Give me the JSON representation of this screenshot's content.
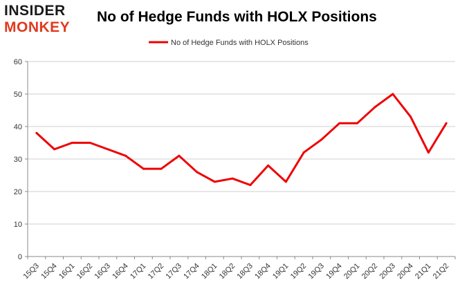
{
  "logo": {
    "line1": "INSIDER",
    "line2": "MONKEY",
    "colors": {
      "line1": "#1a1a1a",
      "line2": "#e03a1e"
    }
  },
  "chart_data": {
    "type": "line",
    "title": "No of Hedge Funds with HOLX Positions",
    "xlabel": "",
    "ylabel": "",
    "categories": [
      "15Q3",
      "15Q4",
      "16Q1",
      "16Q2",
      "16Q3",
      "16Q4",
      "17Q1",
      "17Q2",
      "17Q3",
      "17Q4",
      "18Q1",
      "18Q2",
      "18Q3",
      "18Q4",
      "19Q1",
      "19Q2",
      "19Q3",
      "19Q4",
      "20Q1",
      "20Q2",
      "20Q3",
      "20Q4",
      "21Q1",
      "21Q2"
    ],
    "series": [
      {
        "name": "No of Hedge Funds with HOLX Positions",
        "values": [
          38,
          33,
          35,
          35,
          33,
          31,
          27,
          27,
          31,
          26,
          23,
          24,
          22,
          28,
          23,
          32,
          36,
          41,
          41,
          46,
          50,
          43,
          32,
          41
        ],
        "color": "#ee0000"
      }
    ],
    "ylim": [
      0,
      60
    ],
    "yticks": [
      0,
      10,
      20,
      30,
      40,
      50,
      60
    ],
    "grid": true,
    "legend_position": "top-center"
  }
}
